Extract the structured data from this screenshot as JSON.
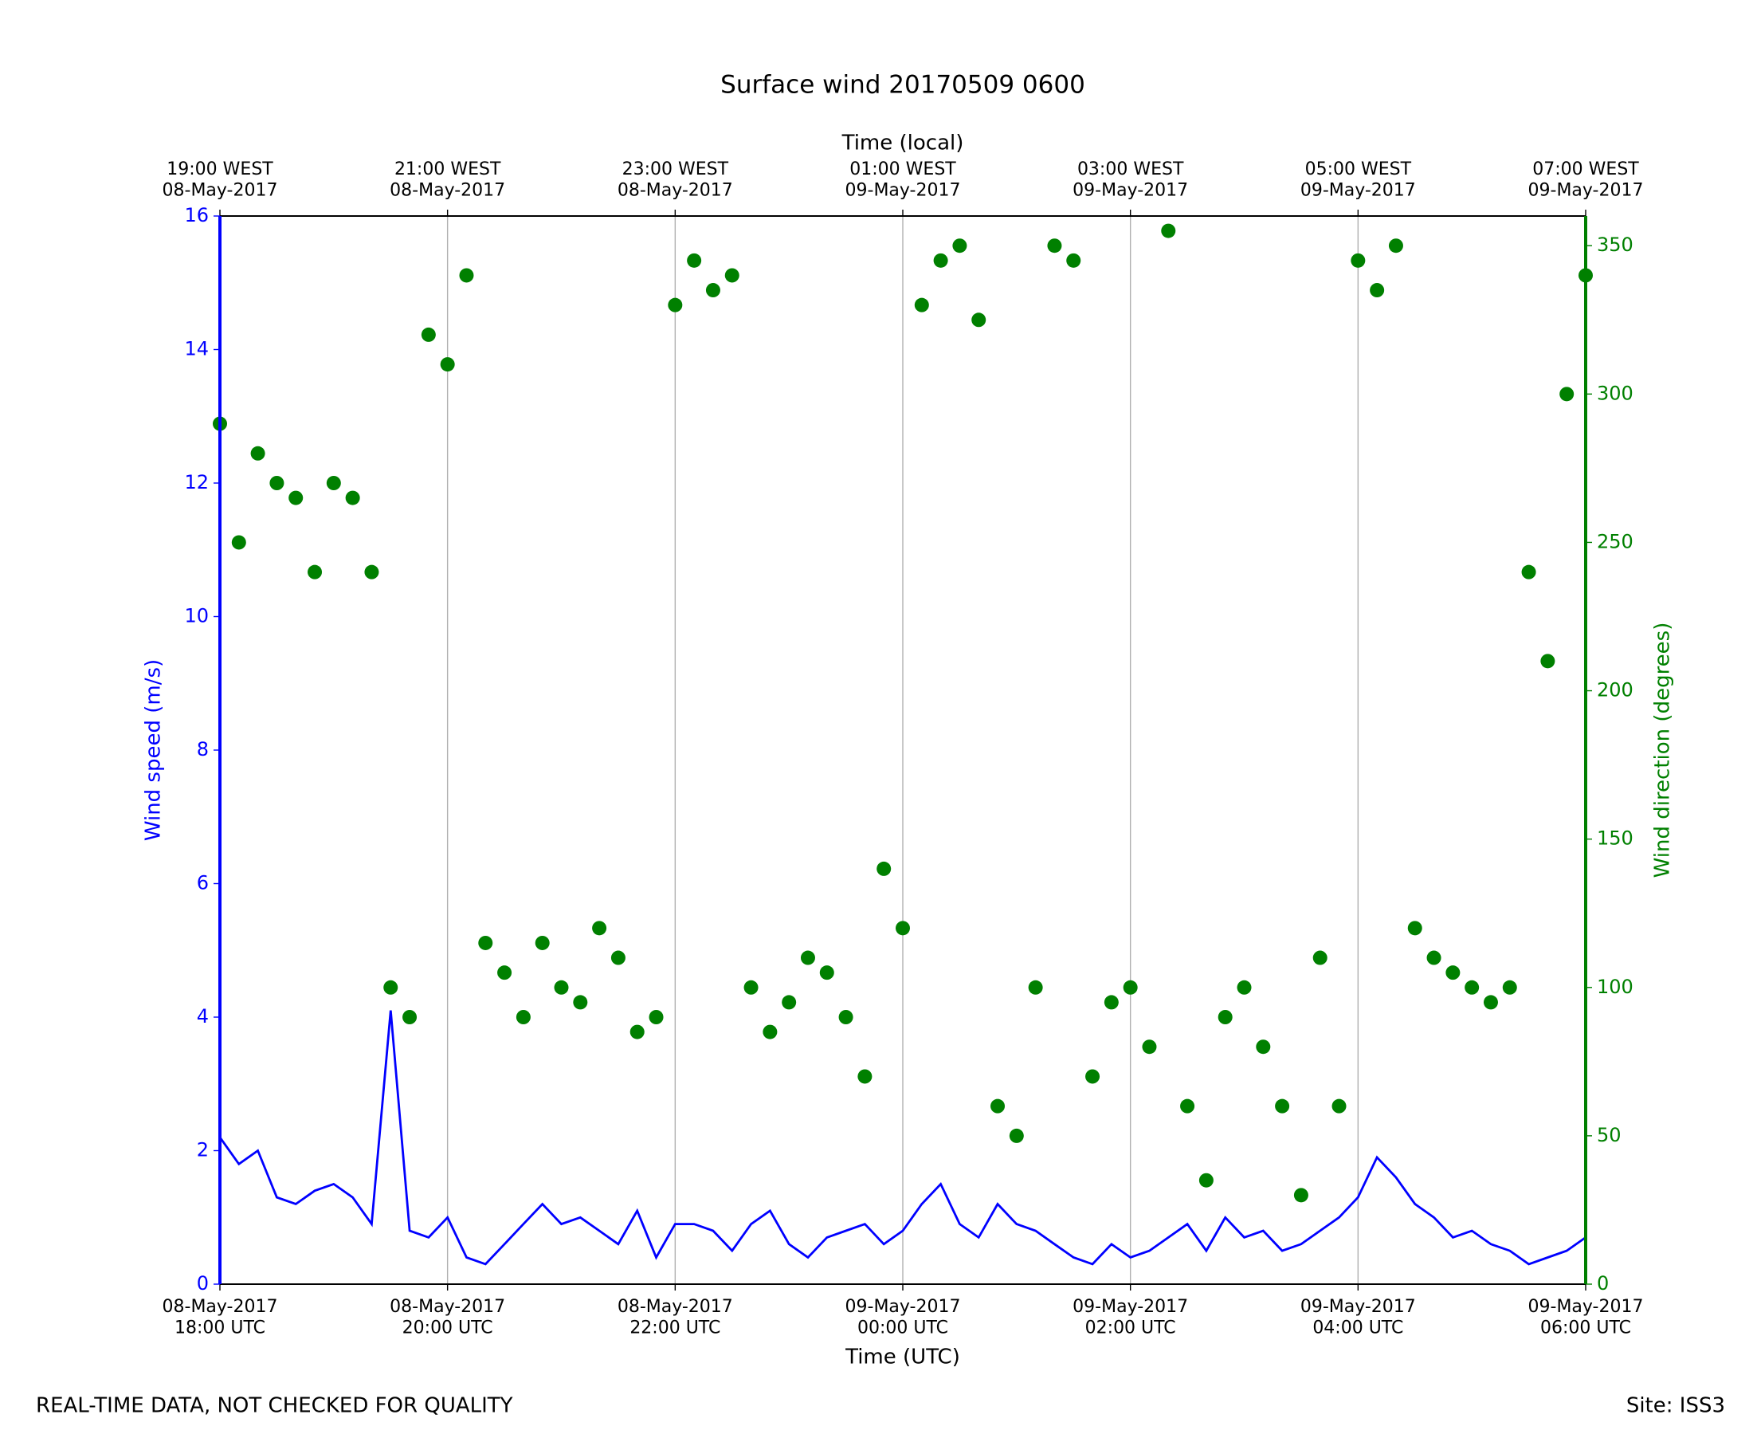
{
  "chart_data": {
    "type": "line",
    "title": "Surface wind 20170509 0600",
    "xlabel": "Time (UTC)",
    "x2label": "Time (local)",
    "ylabel": "Wind speed (m/s)",
    "y2label": "Wind direction (degrees)",
    "footer": "REAL-TIME DATA, NOT CHECKED FOR QUALITY",
    "site": "Site: ISS3",
    "grid": "x",
    "xlim": [
      "2017-05-08 18:00",
      "2017-05-09 06:00"
    ],
    "xticks": [
      {
        "value": "2017-05-08 18:00",
        "label": "08-May-2017\n18:00 UTC"
      },
      {
        "value": "2017-05-08 20:00",
        "label": "08-May-2017\n20:00 UTC"
      },
      {
        "value": "2017-05-08 22:00",
        "label": "08-May-2017\n22:00 UTC"
      },
      {
        "value": "2017-05-09 00:00",
        "label": "09-May-2017\n00:00 UTC"
      },
      {
        "value": "2017-05-09 02:00",
        "label": "09-May-2017\n02:00 UTC"
      },
      {
        "value": "2017-05-09 04:00",
        "label": "09-May-2017\n04:00 UTC"
      },
      {
        "value": "2017-05-09 06:00",
        "label": "09-May-2017\n06:00 UTC"
      }
    ],
    "x2ticks": [
      {
        "value": "2017-05-08 18:00",
        "label": "19:00 WEST\n08-May-2017"
      },
      {
        "value": "2017-05-08 20:00",
        "label": "21:00 WEST\n08-May-2017"
      },
      {
        "value": "2017-05-08 22:00",
        "label": "23:00 WEST\n08-May-2017"
      },
      {
        "value": "2017-05-09 00:00",
        "label": "01:00 WEST\n09-May-2017"
      },
      {
        "value": "2017-05-09 02:00",
        "label": "03:00 WEST\n09-May-2017"
      },
      {
        "value": "2017-05-09 04:00",
        "label": "05:00 WEST\n09-May-2017"
      },
      {
        "value": "2017-05-09 06:00",
        "label": "07:00 WEST\n09-May-2017"
      }
    ],
    "ylim": [
      0,
      16
    ],
    "yticks": [
      0,
      2,
      4,
      6,
      8,
      10,
      12,
      14,
      16
    ],
    "y2lim": [
      0,
      360
    ],
    "y2ticks": [
      0,
      50,
      100,
      150,
      200,
      250,
      300,
      350
    ],
    "ycolor": "#0000ff",
    "y2color": "#008000",
    "x": [
      "2017-05-08 18:00",
      "2017-05-08 18:10",
      "2017-05-08 18:20",
      "2017-05-08 18:30",
      "2017-05-08 18:40",
      "2017-05-08 18:50",
      "2017-05-08 19:00",
      "2017-05-08 19:10",
      "2017-05-08 19:20",
      "2017-05-08 19:30",
      "2017-05-08 19:40",
      "2017-05-08 19:50",
      "2017-05-08 20:00",
      "2017-05-08 20:10",
      "2017-05-08 20:20",
      "2017-05-08 20:30",
      "2017-05-08 20:40",
      "2017-05-08 20:50",
      "2017-05-08 21:00",
      "2017-05-08 21:10",
      "2017-05-08 21:20",
      "2017-05-08 21:30",
      "2017-05-08 21:40",
      "2017-05-08 21:50",
      "2017-05-08 22:00",
      "2017-05-08 22:10",
      "2017-05-08 22:20",
      "2017-05-08 22:30",
      "2017-05-08 22:40",
      "2017-05-08 22:50",
      "2017-05-08 23:00",
      "2017-05-08 23:10",
      "2017-05-08 23:20",
      "2017-05-08 23:30",
      "2017-05-08 23:40",
      "2017-05-08 23:50",
      "2017-05-09 00:00",
      "2017-05-09 00:10",
      "2017-05-09 00:20",
      "2017-05-09 00:30",
      "2017-05-09 00:40",
      "2017-05-09 00:50",
      "2017-05-09 01:00",
      "2017-05-09 01:10",
      "2017-05-09 01:20",
      "2017-05-09 01:30",
      "2017-05-09 01:40",
      "2017-05-09 01:50",
      "2017-05-09 02:00",
      "2017-05-09 02:10",
      "2017-05-09 02:20",
      "2017-05-09 02:30",
      "2017-05-09 02:40",
      "2017-05-09 02:50",
      "2017-05-09 03:00",
      "2017-05-09 03:10",
      "2017-05-09 03:20",
      "2017-05-09 03:30",
      "2017-05-09 03:40",
      "2017-05-09 03:50",
      "2017-05-09 04:00",
      "2017-05-09 04:10",
      "2017-05-09 04:20",
      "2017-05-09 04:30",
      "2017-05-09 04:40",
      "2017-05-09 04:50",
      "2017-05-09 05:00",
      "2017-05-09 05:10",
      "2017-05-09 05:20",
      "2017-05-09 05:30",
      "2017-05-09 05:40",
      "2017-05-09 05:50",
      "2017-05-09 06:00"
    ],
    "series": [
      {
        "type": "line",
        "color": "#0000ff",
        "values": [
          2.2,
          1.8,
          2.0,
          1.3,
          1.2,
          1.4,
          1.5,
          1.3,
          0.9,
          4.1,
          0.8,
          0.7,
          1.0,
          0.4,
          0.3,
          0.6,
          0.9,
          1.2,
          0.9,
          1.0,
          0.8,
          0.6,
          1.1,
          0.4,
          0.9,
          0.9,
          0.8,
          0.5,
          0.9,
          1.1,
          0.6,
          0.4,
          0.7,
          0.8,
          0.9,
          0.6,
          0.8,
          1.2,
          1.5,
          0.9,
          0.7,
          1.2,
          0.9,
          0.8,
          0.6,
          0.4,
          0.3,
          0.6,
          0.4,
          0.5,
          0.7,
          0.9,
          0.5,
          1.0,
          0.7,
          0.8,
          0.5,
          0.6,
          0.8,
          1.0,
          1.3,
          1.9,
          1.6,
          1.2,
          1.0,
          0.7,
          0.8,
          0.6,
          0.5,
          0.3,
          0.4,
          0.5,
          0.7
        ]
      },
      {
        "type": "scatter",
        "axis": "y2",
        "color": "#008000",
        "values": [
          290,
          250,
          280,
          270,
          265,
          240,
          270,
          265,
          240,
          100,
          90,
          320,
          310,
          340,
          115,
          105,
          90,
          115,
          100,
          95,
          120,
          110,
          85,
          90,
          330,
          345,
          335,
          340,
          100,
          85,
          95,
          110,
          105,
          90,
          70,
          140,
          120,
          330,
          345,
          350,
          325,
          60,
          50,
          100,
          350,
          345,
          70,
          95,
          100,
          80,
          355,
          60,
          35,
          90,
          100,
          80,
          60,
          30,
          110,
          60,
          345,
          335,
          350,
          120,
          110,
          105,
          100,
          95,
          100,
          240,
          210,
          300,
          340
        ]
      }
    ]
  }
}
